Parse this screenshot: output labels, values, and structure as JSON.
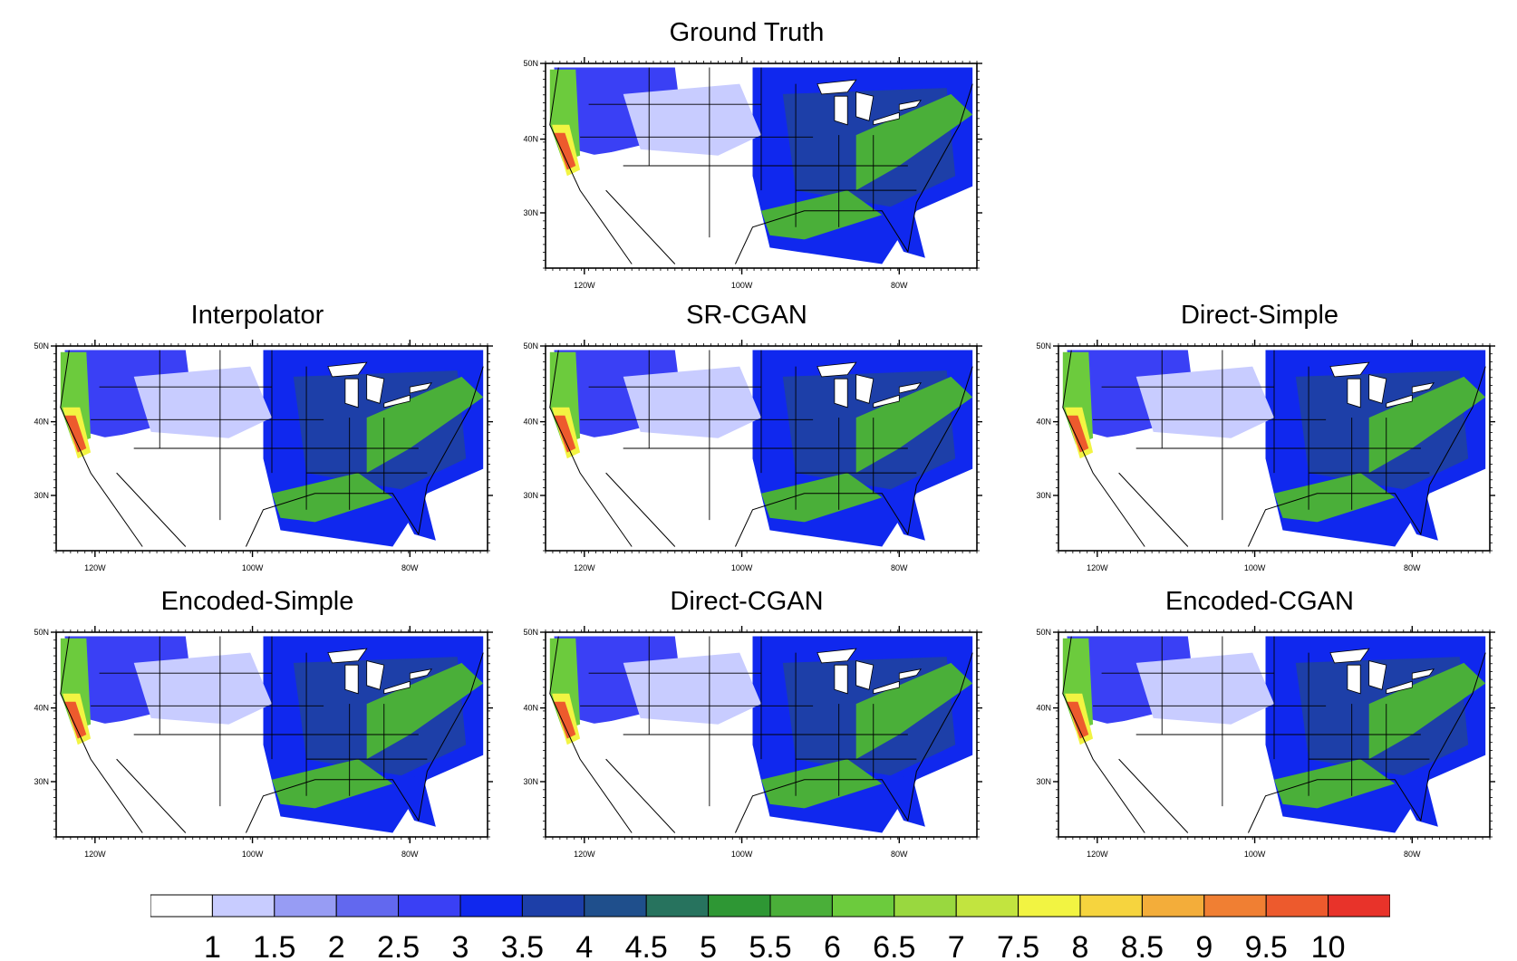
{
  "panels": [
    {
      "id": "ground-truth",
      "title": "Ground Truth"
    },
    {
      "id": "interpolator",
      "title": "Interpolator"
    },
    {
      "id": "sr-cgan",
      "title": "SR-CGAN"
    },
    {
      "id": "direct-simple",
      "title": "Direct-Simple"
    },
    {
      "id": "encoded-simple",
      "title": "Encoded-Simple"
    },
    {
      "id": "direct-cgan",
      "title": "Direct-CGAN"
    },
    {
      "id": "encoded-cgan",
      "title": "Encoded-CGAN"
    }
  ],
  "axes": {
    "lat_labels": [
      "50N",
      "40N",
      "30N"
    ],
    "lon_labels": [
      "120W",
      "100W",
      "80W"
    ]
  },
  "colorbar": {
    "labels": [
      "1",
      "1.5",
      "2",
      "2.5",
      "3",
      "3.5",
      "4",
      "4.5",
      "5",
      "5.5",
      "6",
      "6.5",
      "7",
      "7.5",
      "8",
      "8.5",
      "9",
      "9.5",
      "10"
    ],
    "colors": [
      "#ffffff",
      "#c8ccff",
      "#979cf4",
      "#6268ef",
      "#3a40f5",
      "#1028ee",
      "#1d3fa8",
      "#1f4f8c",
      "#27735e",
      "#2e9734",
      "#4aaf39",
      "#6ccb3d",
      "#99d83f",
      "#c2e43f",
      "#f2f442",
      "#f6d43e",
      "#f3ad3a",
      "#f07f33",
      "#ed5a2d",
      "#e8332a"
    ]
  }
}
